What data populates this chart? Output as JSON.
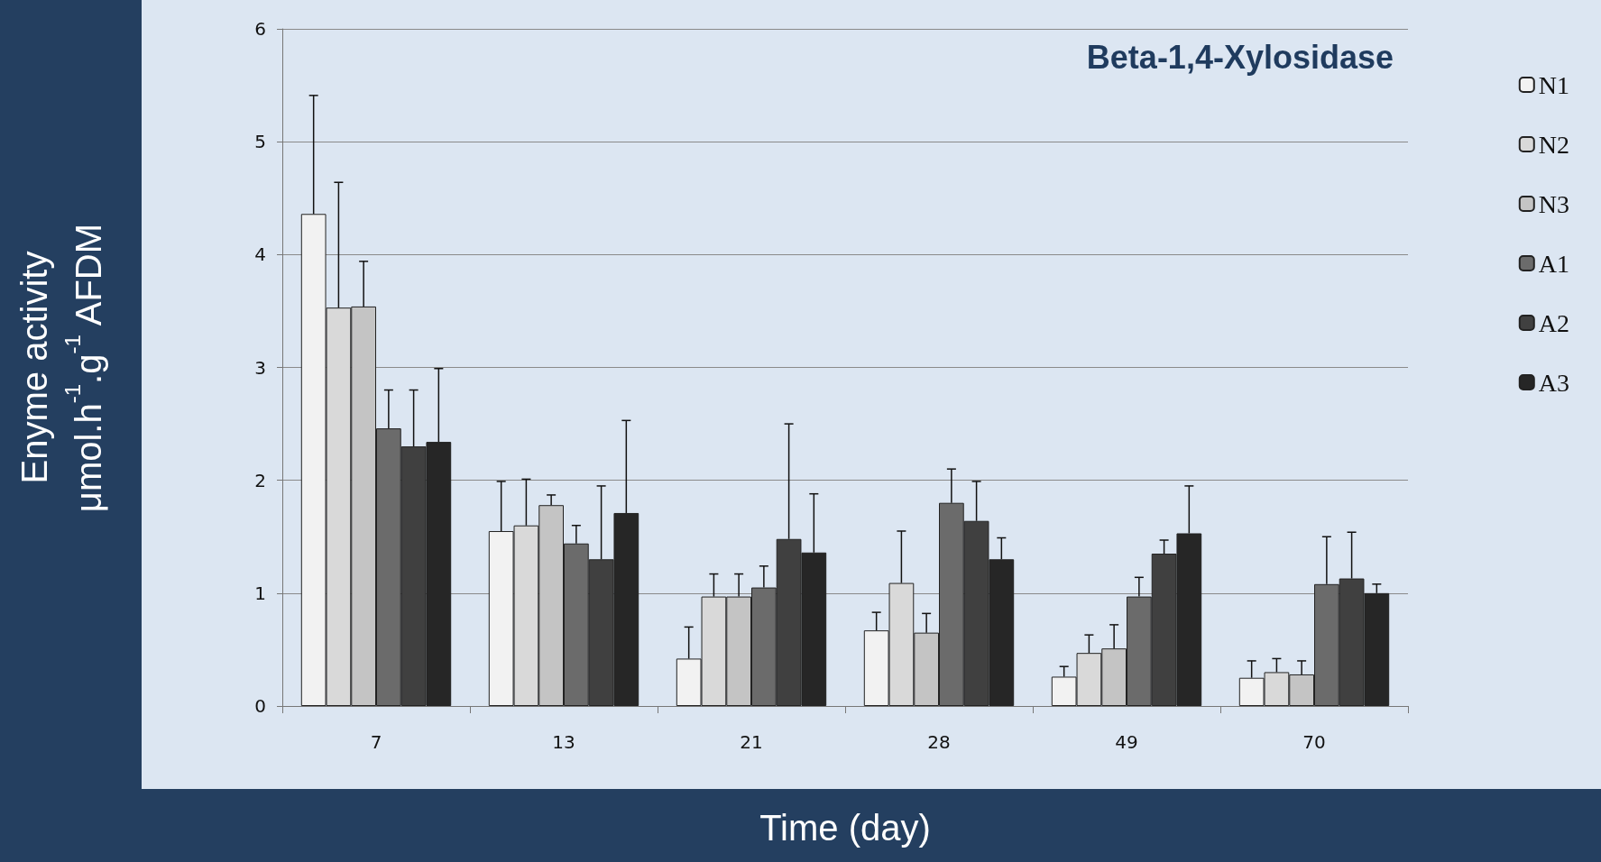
{
  "chart_data": {
    "type": "bar",
    "title": "Beta-1,4-Xylosidase",
    "xlabel": "Time (day)",
    "ylabel": "Enyme activity\nμmol.h$^{-1}$.g$^{-1}$ AFDM",
    "categories": [
      "7",
      "13",
      "21",
      "28",
      "49",
      "70"
    ],
    "series": [
      {
        "name": "N1",
        "color": "#f2f2f2",
        "values": [
          4.36,
          1.55,
          0.42,
          0.67,
          0.26,
          0.25
        ],
        "errors": [
          [
            4.36,
            5.41
          ],
          [
            1.55,
            1.99
          ],
          [
            0.42,
            0.7
          ],
          [
            0.67,
            0.83
          ],
          [
            0.26,
            0.35
          ],
          [
            0.25,
            0.4
          ]
        ]
      },
      {
        "name": "N2",
        "color": "#d9d9d9",
        "values": [
          3.53,
          1.6,
          0.97,
          1.09,
          0.47,
          0.3
        ],
        "errors": [
          [
            3.53,
            4.64
          ],
          [
            1.6,
            2.01
          ],
          [
            0.97,
            1.17
          ],
          [
            1.09,
            1.55
          ],
          [
            0.47,
            0.63
          ],
          [
            0.3,
            0.42
          ]
        ]
      },
      {
        "name": "N3",
        "color": "#c4c4c4",
        "values": [
          3.54,
          1.78,
          0.97,
          0.65,
          0.51,
          0.28
        ],
        "errors": [
          [
            3.54,
            3.94
          ],
          [
            1.78,
            1.87
          ],
          [
            0.97,
            1.17
          ],
          [
            0.65,
            0.82
          ],
          [
            0.51,
            0.72
          ],
          [
            0.28,
            0.4
          ]
        ]
      },
      {
        "name": "A1",
        "color": "#6b6b6b",
        "values": [
          2.46,
          1.44,
          1.05,
          1.8,
          0.97,
          1.08
        ],
        "errors": [
          [
            2.46,
            2.8
          ],
          [
            1.44,
            1.6
          ],
          [
            1.05,
            1.24
          ],
          [
            1.8,
            2.1
          ],
          [
            0.97,
            1.14
          ],
          [
            1.08,
            1.5
          ]
        ]
      },
      {
        "name": "A2",
        "color": "#404040",
        "values": [
          2.3,
          1.3,
          1.48,
          1.64,
          1.35,
          1.13
        ],
        "errors": [
          [
            2.3,
            2.8
          ],
          [
            1.3,
            1.95
          ],
          [
            1.48,
            2.5
          ],
          [
            1.64,
            1.99
          ],
          [
            1.35,
            1.47
          ],
          [
            1.13,
            1.54
          ]
        ]
      },
      {
        "name": "A3",
        "color": "#262626",
        "values": [
          2.34,
          1.71,
          1.36,
          1.3,
          1.53,
          1.0
        ],
        "errors": [
          [
            2.34,
            2.99
          ],
          [
            1.71,
            2.53
          ],
          [
            1.36,
            1.88
          ],
          [
            1.3,
            1.49
          ],
          [
            1.53,
            1.95
          ],
          [
            1.0,
            1.08
          ]
        ]
      }
    ],
    "ylim": [
      0,
      6
    ],
    "yticks": [
      0,
      1,
      2,
      3,
      4,
      5,
      6
    ],
    "grid": "y",
    "legend": "right"
  }
}
